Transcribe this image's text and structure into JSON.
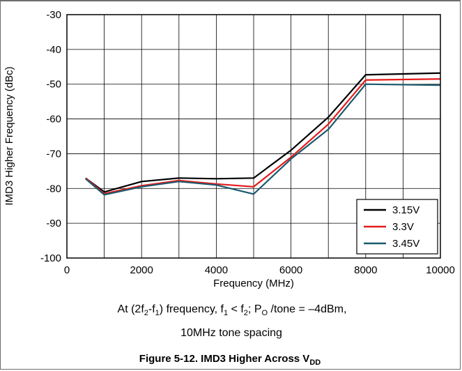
{
  "chart_data": {
    "type": "line",
    "xlabel": "Frequency (MHz)",
    "ylabel": "IMD3 Higher Frequency (dBc)",
    "xlim": [
      0,
      10000
    ],
    "ylim": [
      -100,
      -30
    ],
    "x_ticks": [
      "0",
      "2000",
      "4000",
      "6000",
      "8000",
      "10000"
    ],
    "y_ticks": [
      "-30",
      "-40",
      "-50",
      "-60",
      "-70",
      "-80",
      "-90",
      "-100"
    ],
    "grid": true,
    "legend_position": "bottom-right",
    "series": [
      {
        "name": "3.15V",
        "color": "#000000",
        "points": [
          [
            500,
            -77
          ],
          [
            1000,
            -81
          ],
          [
            2000,
            -78
          ],
          [
            3000,
            -77
          ],
          [
            4000,
            -77.2
          ],
          [
            5000,
            -77
          ],
          [
            6000,
            -69
          ],
          [
            7000,
            -59.5
          ],
          [
            8000,
            -47.3
          ],
          [
            10000,
            -46.8
          ]
        ]
      },
      {
        "name": "3.3V",
        "color": "#e41b1b",
        "points": [
          [
            500,
            -77
          ],
          [
            1000,
            -81.5
          ],
          [
            2000,
            -79.2
          ],
          [
            3000,
            -77.7
          ],
          [
            4000,
            -78.7
          ],
          [
            5000,
            -79.5
          ],
          [
            6000,
            -71
          ],
          [
            7000,
            -61.5
          ],
          [
            8000,
            -48.8
          ],
          [
            10000,
            -48.5
          ]
        ]
      },
      {
        "name": "3.45V",
        "color": "#1a5a6e",
        "points": [
          [
            500,
            -77.2
          ],
          [
            1000,
            -81.8
          ],
          [
            2000,
            -79.5
          ],
          [
            3000,
            -78
          ],
          [
            4000,
            -79
          ],
          [
            5000,
            -81.6
          ],
          [
            6000,
            -71.5
          ],
          [
            7000,
            -63
          ],
          [
            8000,
            -50
          ],
          [
            10000,
            -50.3
          ]
        ]
      }
    ]
  },
  "caption": {
    "line1": {
      "a": "At (2f",
      "a_sub": "2",
      "b": "-f",
      "b_sub": "1",
      "c": ") frequency, f",
      "c_sub": "1",
      "d": " < f",
      "d_sub": "2",
      "e": "; P",
      "e_sub": "O",
      "f": " /tone = –4dBm,"
    },
    "line2": "10MHz tone spacing",
    "figure_title": "Figure 5-12. IMD3 Higher Across V",
    "figure_title_sub": "DD"
  }
}
